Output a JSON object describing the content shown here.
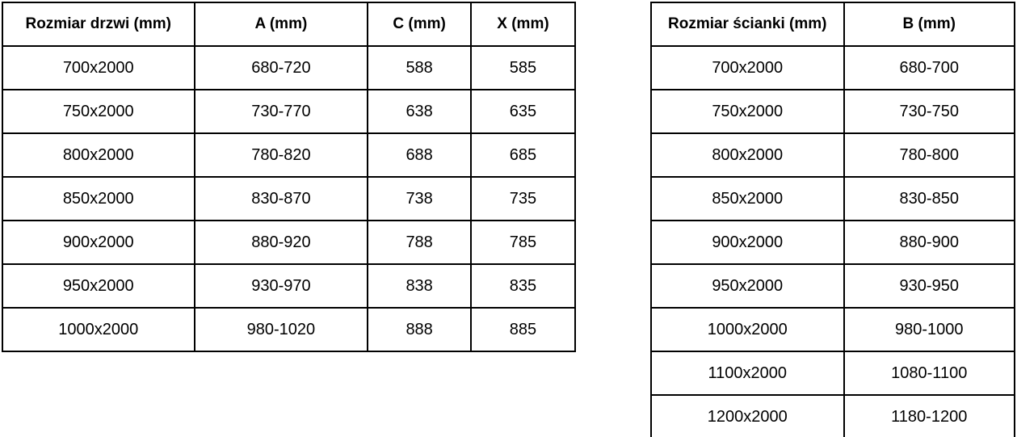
{
  "colors": {
    "border": "#000000",
    "text": "#000000",
    "background": "#ffffff"
  },
  "door_table": {
    "headers": [
      "Rozmiar drzwi (mm)",
      "A (mm)",
      "C (mm)",
      "X (mm)"
    ],
    "rows": [
      [
        "700x2000",
        "680-720",
        "588",
        "585"
      ],
      [
        "750x2000",
        "730-770",
        "638",
        "635"
      ],
      [
        "800x2000",
        "780-820",
        "688",
        "685"
      ],
      [
        "850x2000",
        "830-870",
        "738",
        "735"
      ],
      [
        "900x2000",
        "880-920",
        "788",
        "785"
      ],
      [
        "950x2000",
        "930-970",
        "838",
        "835"
      ],
      [
        "1000x2000",
        "980-1020",
        "888",
        "885"
      ]
    ]
  },
  "wall_table": {
    "headers": [
      "Rozmiar ścianki (mm)",
      "B (mm)"
    ],
    "rows": [
      [
        "700x2000",
        "680-700"
      ],
      [
        "750x2000",
        "730-750"
      ],
      [
        "800x2000",
        "780-800"
      ],
      [
        "850x2000",
        "830-850"
      ],
      [
        "900x2000",
        "880-900"
      ],
      [
        "950x2000",
        "930-950"
      ],
      [
        "1000x2000",
        "980-1000"
      ],
      [
        "1100x2000",
        "1080-1100"
      ],
      [
        "1200x2000",
        "1180-1200"
      ]
    ]
  }
}
